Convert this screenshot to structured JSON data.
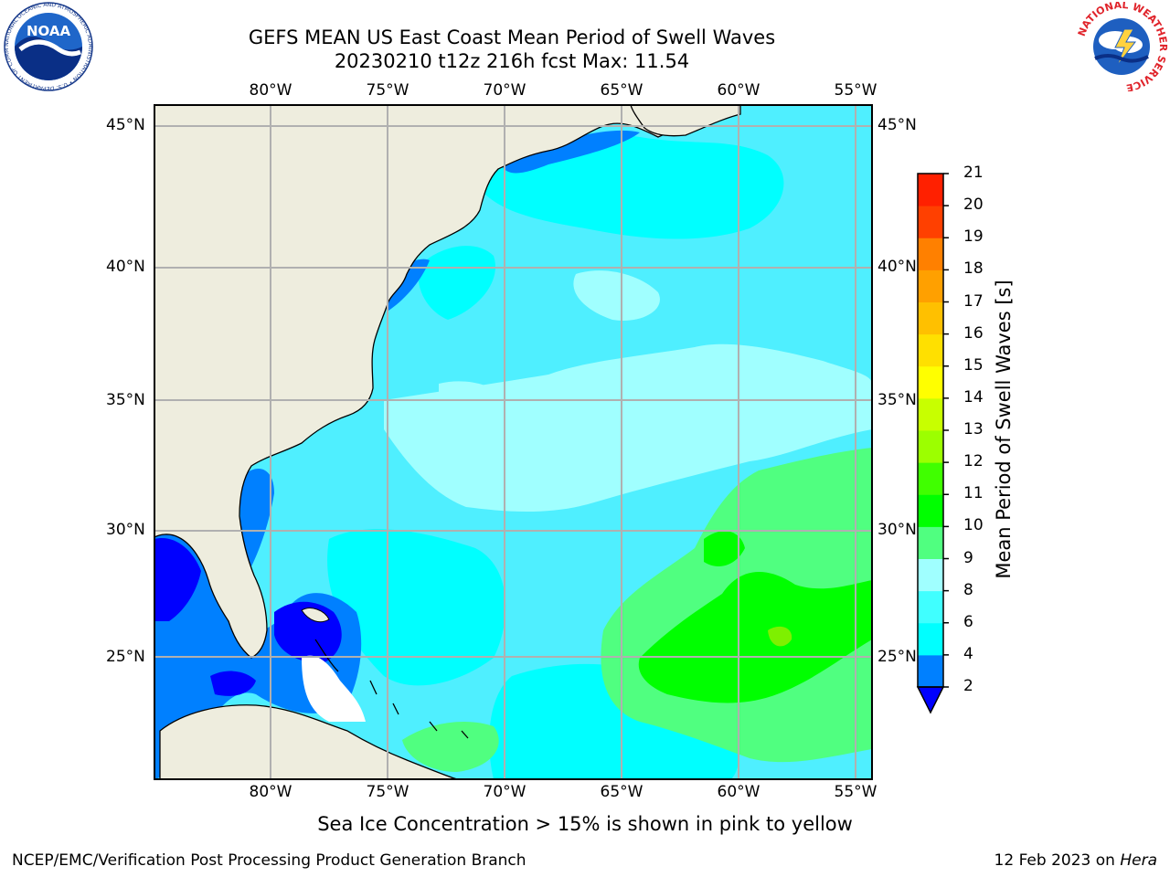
{
  "title": {
    "line1": "GEFS MEAN US East Coast Mean Period of Swell Waves",
    "line2": "20230210 t12z 216h fcst   Max: 11.54"
  },
  "map": {
    "lon_labels": [
      "80°W",
      "75°W",
      "70°W",
      "65°W",
      "60°W",
      "55°W"
    ],
    "lat_labels": [
      "45°N",
      "40°N",
      "35°N",
      "30°N",
      "25°N"
    ],
    "land_color": "#eeedde",
    "grid_color": "#b0b0b0"
  },
  "colorbar": {
    "label": "Mean Period of Swell Waves [s]",
    "ticks": [
      "2",
      "4",
      "6",
      "8",
      "9",
      "10",
      "11",
      "12",
      "13",
      "14",
      "15",
      "16",
      "17",
      "18",
      "19",
      "20",
      "21"
    ],
    "colors": [
      "#0000ff",
      "#0080ff",
      "#00ffff",
      "#40ffff",
      "#a0ffff",
      "#50ff80",
      "#00ff00",
      "#40ff00",
      "#9cff00",
      "#c8ff00",
      "#ffff00",
      "#ffe000",
      "#ffc000",
      "#ffa000",
      "#ff8000",
      "#ff4000",
      "#ff2000",
      "#ff0000"
    ],
    "under_color": "#0000ff"
  },
  "caption": "Sea Ice Concentration > 15% is shown in pink to yellow",
  "footer": {
    "left": "NCEP/EMC/Verification Post Processing Product Generation Branch",
    "date": "12 Feb 2023 on ",
    "host": "Hera"
  },
  "logos": {
    "noaa_text": "NOAA",
    "noaa_ring": "NATIONAL OCEANIC AND ATMOSPHERIC ADMINISTRATION • U.S. DEPARTMENT OF COMMERCE",
    "nws_ring": "NATIONAL WEATHER SERVICE"
  }
}
